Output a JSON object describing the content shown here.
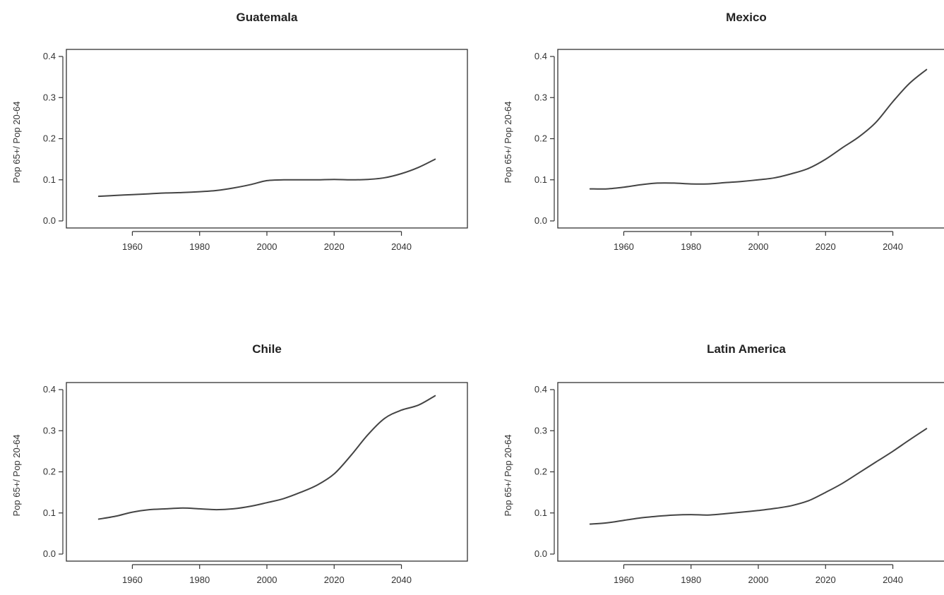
{
  "chart_data": [
    {
      "type": "line",
      "title": "Guatemala",
      "xlabel": "",
      "ylabel": "Pop 65+/ Pop 20-64",
      "xlim": [
        1945,
        2055
      ],
      "ylim": [
        0.0,
        0.4
      ],
      "x_ticks": [
        "1960",
        "1980",
        "2000",
        "2020",
        "2040"
      ],
      "y_ticks": [
        "0.0",
        "0.1",
        "0.2",
        "0.3",
        "0.4"
      ],
      "grid": false,
      "series": [
        {
          "x": [
            1950,
            1955,
            1960,
            1965,
            1970,
            1975,
            1980,
            1985,
            1990,
            1995,
            2000,
            2005,
            2010,
            2015,
            2020,
            2025,
            2030,
            2035,
            2040,
            2045,
            2050
          ],
          "values": [
            0.06,
            0.062,
            0.064,
            0.066,
            0.068,
            0.069,
            0.071,
            0.074,
            0.08,
            0.088,
            0.098,
            0.1,
            0.1,
            0.1,
            0.101,
            0.1,
            0.101,
            0.105,
            0.115,
            0.13,
            0.15
          ]
        }
      ]
    },
    {
      "type": "line",
      "title": "Mexico",
      "xlabel": "",
      "ylabel": "Pop 65+/ Pop 20-64",
      "xlim": [
        1945,
        2055
      ],
      "ylim": [
        0.0,
        0.4
      ],
      "x_ticks": [
        "1960",
        "1980",
        "2000",
        "2020",
        "2040"
      ],
      "y_ticks": [
        "0.0",
        "0.1",
        "0.2",
        "0.3",
        "0.4"
      ],
      "grid": false,
      "series": [
        {
          "x": [
            1950,
            1955,
            1960,
            1965,
            1970,
            1975,
            1980,
            1985,
            1990,
            1995,
            2000,
            2005,
            2010,
            2015,
            2020,
            2025,
            2030,
            2035,
            2040,
            2045,
            2050
          ],
          "values": [
            0.078,
            0.078,
            0.082,
            0.088,
            0.092,
            0.092,
            0.09,
            0.09,
            0.093,
            0.096,
            0.1,
            0.105,
            0.115,
            0.128,
            0.15,
            0.178,
            0.205,
            0.24,
            0.29,
            0.335,
            0.368
          ]
        }
      ]
    },
    {
      "type": "line",
      "title": "Chile",
      "xlabel": "",
      "ylabel": "Pop 65+/ Pop 20-64",
      "xlim": [
        1945,
        2055
      ],
      "ylim": [
        0.0,
        0.4
      ],
      "x_ticks": [
        "1960",
        "1980",
        "2000",
        "2020",
        "2040"
      ],
      "y_ticks": [
        "0.0",
        "0.1",
        "0.2",
        "0.3",
        "0.4"
      ],
      "grid": false,
      "series": [
        {
          "x": [
            1950,
            1955,
            1960,
            1965,
            1970,
            1975,
            1980,
            1985,
            1990,
            1995,
            2000,
            2005,
            2010,
            2015,
            2020,
            2025,
            2030,
            2035,
            2040,
            2045,
            2050
          ],
          "values": [
            0.085,
            0.092,
            0.102,
            0.108,
            0.11,
            0.112,
            0.11,
            0.108,
            0.11,
            0.116,
            0.125,
            0.135,
            0.15,
            0.168,
            0.195,
            0.24,
            0.29,
            0.33,
            0.35,
            0.362,
            0.385
          ]
        }
      ]
    },
    {
      "type": "line",
      "title": "Latin America",
      "xlabel": "",
      "ylabel": "Pop 65+/ Pop 20-64",
      "xlim": [
        1945,
        2055
      ],
      "ylim": [
        0.0,
        0.4
      ],
      "x_ticks": [
        "1960",
        "1980",
        "2000",
        "2020",
        "2040"
      ],
      "y_ticks": [
        "0.0",
        "0.1",
        "0.2",
        "0.3",
        "0.4"
      ],
      "grid": false,
      "series": [
        {
          "x": [
            1950,
            1955,
            1960,
            1965,
            1970,
            1975,
            1980,
            1985,
            1990,
            1995,
            2000,
            2005,
            2010,
            2015,
            2020,
            2025,
            2030,
            2035,
            2040,
            2045,
            2050
          ],
          "values": [
            0.073,
            0.076,
            0.082,
            0.088,
            0.092,
            0.095,
            0.096,
            0.095,
            0.098,
            0.102,
            0.106,
            0.111,
            0.118,
            0.13,
            0.15,
            0.172,
            0.198,
            0.224,
            0.25,
            0.278,
            0.305
          ]
        }
      ]
    }
  ]
}
